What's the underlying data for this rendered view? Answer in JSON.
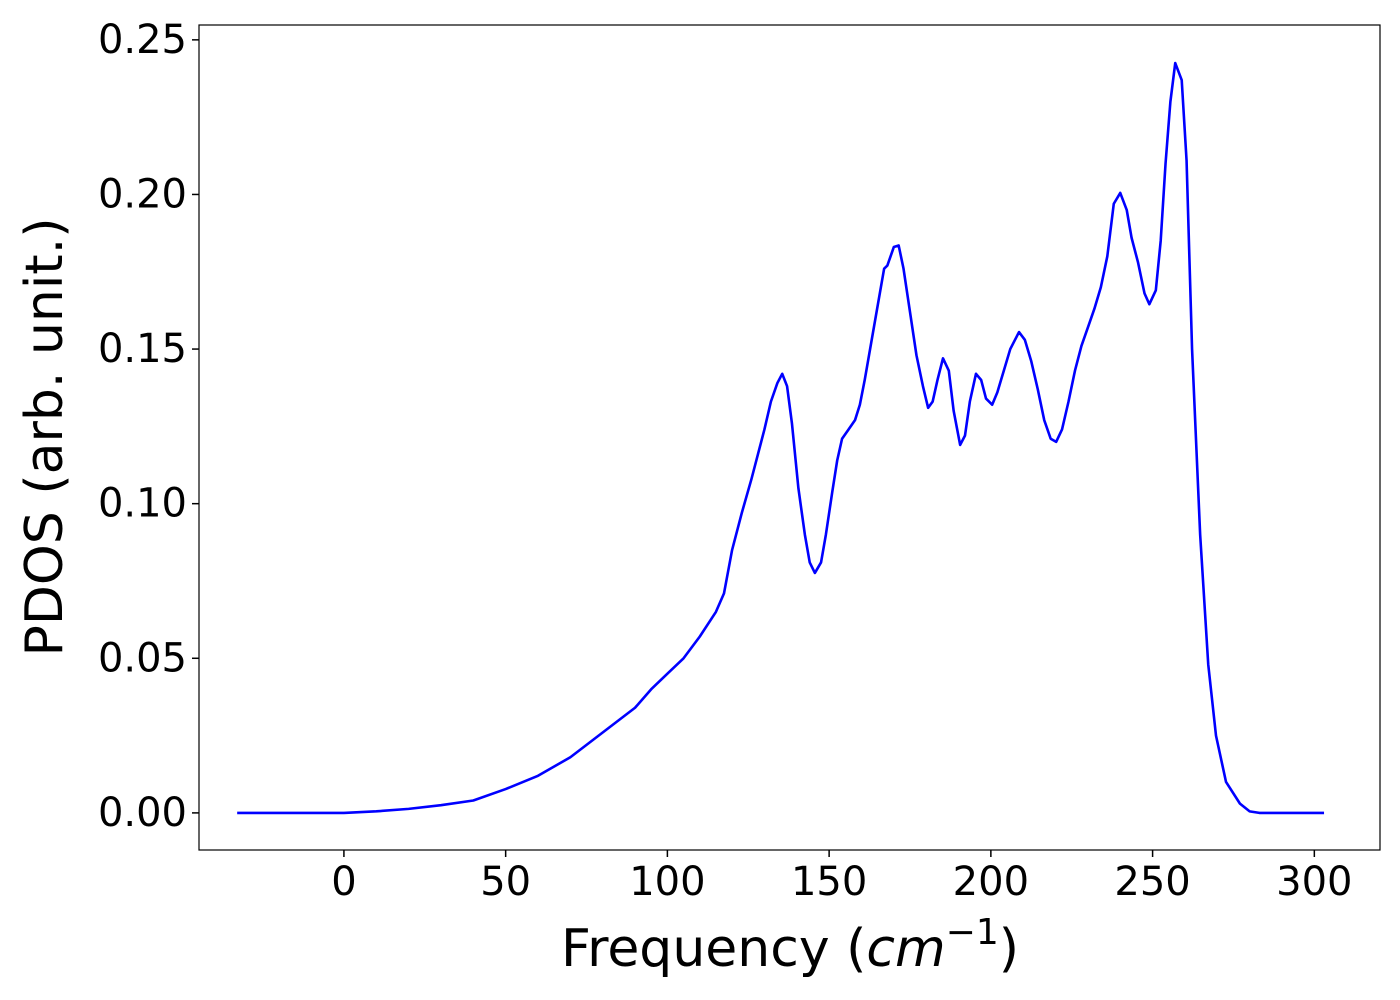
{
  "chart_data": {
    "type": "line",
    "xlabel": [
      "Frequency (",
      "cm",
      "−1",
      ")"
    ],
    "ylabel": "PDOS (arb. unit.)",
    "color": "#0000ff",
    "x": [
      -33,
      -20,
      -10,
      0,
      10,
      20,
      30,
      40,
      50,
      60,
      70,
      80,
      90,
      95,
      100,
      105,
      110,
      115,
      117.5,
      120,
      123,
      126,
      128,
      130,
      132,
      134,
      135.5,
      137,
      138.5,
      140.5,
      142.5,
      144,
      145.6,
      147.5,
      149,
      151,
      152.5,
      154,
      156,
      158,
      159.5,
      161,
      163,
      165,
      167,
      168,
      170,
      171.5,
      173,
      175,
      177,
      179,
      180.6,
      182,
      183.5,
      185.2,
      187,
      188.5,
      190.5,
      192,
      193.5,
      195.4,
      197,
      198.5,
      200.4,
      202,
      204,
      206,
      208.7,
      210.5,
      212.5,
      214.5,
      216.5,
      218.5,
      220.2,
      222,
      224,
      226,
      228,
      230,
      232,
      234,
      236,
      238,
      240,
      242,
      243.5,
      245.5,
      247.5,
      249,
      251,
      252.5,
      254,
      255.5,
      257,
      259,
      260.5,
      262.2,
      264.7,
      267.2,
      269.6,
      272.7,
      277,
      280,
      283,
      290,
      303
    ],
    "values": [
      0,
      0,
      0,
      0,
      0.0005,
      0.0013,
      0.0025,
      0.004,
      0.0077,
      0.012,
      0.018,
      0.026,
      0.034,
      0.04,
      0.045,
      0.05,
      0.057,
      0.065,
      0.071,
      0.085,
      0.097,
      0.108,
      0.116,
      0.124,
      0.133,
      0.139,
      0.142,
      0.138,
      0.126,
      0.105,
      0.09,
      0.081,
      0.0776,
      0.081,
      0.09,
      0.104,
      0.114,
      0.121,
      0.124,
      0.127,
      0.132,
      0.14,
      0.152,
      0.164,
      0.176,
      0.177,
      0.183,
      0.1835,
      0.176,
      0.162,
      0.148,
      0.138,
      0.131,
      0.133,
      0.14,
      0.147,
      0.143,
      0.13,
      0.119,
      0.122,
      0.133,
      0.142,
      0.14,
      0.134,
      0.132,
      0.136,
      0.143,
      0.15,
      0.1555,
      0.153,
      0.146,
      0.137,
      0.127,
      0.121,
      0.12,
      0.124,
      0.133,
      0.143,
      0.151,
      0.157,
      0.163,
      0.17,
      0.18,
      0.197,
      0.2005,
      0.195,
      0.186,
      0.178,
      0.168,
      0.1645,
      0.169,
      0.185,
      0.21,
      0.23,
      0.2425,
      0.237,
      0.211,
      0.15,
      0.09,
      0.048,
      0.025,
      0.01,
      0.003,
      0.0005,
      0,
      0,
      0
    ],
    "xlim": [
      -44.8,
      320.3
    ],
    "ylim": [
      -0.012,
      0.2548
    ],
    "xticks": [
      0,
      50,
      100,
      150,
      200,
      250,
      300
    ],
    "yticks": [
      {
        "value": 0,
        "label": "0.00"
      },
      {
        "value": 0.05,
        "label": "0.05"
      },
      {
        "value": 0.1,
        "label": "0.10"
      },
      {
        "value": 0.15,
        "label": "0.15"
      },
      {
        "value": 0.2,
        "label": "0.20"
      },
      {
        "value": 0.25,
        "label": "0.25"
      }
    ],
    "grid": false
  }
}
